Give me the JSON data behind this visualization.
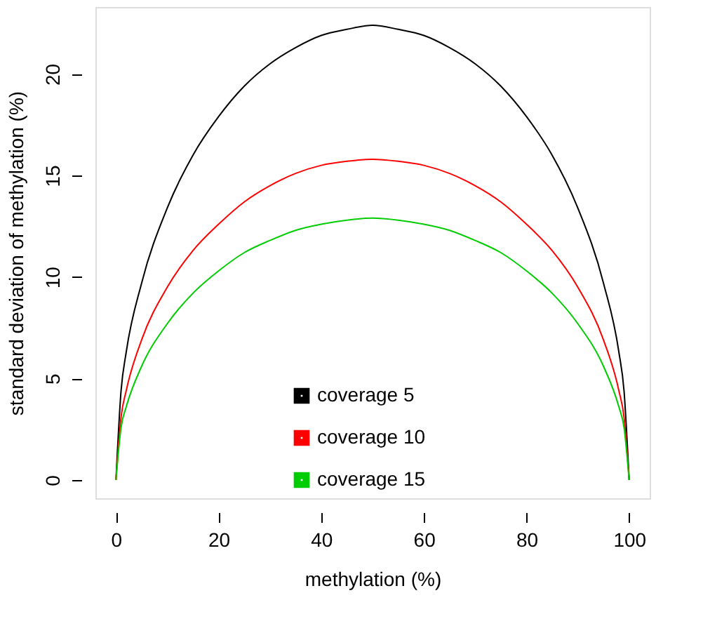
{
  "chart_data": {
    "type": "line",
    "xlabel": "methylation (%)",
    "ylabel": "standard deviation of methylation (%)",
    "x": [
      0,
      1,
      2,
      5,
      10,
      15,
      20,
      25,
      30,
      35,
      40,
      45,
      50,
      55,
      60,
      65,
      70,
      75,
      80,
      85,
      90,
      95,
      98,
      99,
      100
    ],
    "series": [
      {
        "name": "coverage 5",
        "color": "#000000",
        "values": [
          0,
          4.4,
          6.3,
          9.7,
          13.4,
          16.0,
          17.9,
          19.4,
          20.5,
          21.3,
          21.9,
          22.2,
          22.4,
          22.2,
          21.9,
          21.3,
          20.5,
          19.4,
          17.9,
          16.0,
          13.4,
          9.7,
          6.3,
          4.4,
          0
        ]
      },
      {
        "name": "coverage 10",
        "color": "#ff0000",
        "values": [
          0,
          3.1,
          4.4,
          6.9,
          9.5,
          11.3,
          12.6,
          13.7,
          14.5,
          15.1,
          15.5,
          15.7,
          15.8,
          15.7,
          15.5,
          15.1,
          14.5,
          13.7,
          12.6,
          11.3,
          9.5,
          6.9,
          4.4,
          3.1,
          0
        ]
      },
      {
        "name": "coverage 15",
        "color": "#00cd00",
        "values": [
          0,
          2.6,
          3.6,
          5.6,
          7.7,
          9.2,
          10.3,
          11.2,
          11.8,
          12.3,
          12.6,
          12.8,
          12.9,
          12.8,
          12.6,
          12.3,
          11.8,
          11.2,
          10.3,
          9.2,
          7.7,
          5.6,
          3.6,
          2.6,
          0
        ]
      }
    ],
    "xlim": [
      -4,
      104
    ],
    "xticks": [
      0,
      20,
      40,
      60,
      80,
      100
    ],
    "ylim": [
      -0.9,
      23.3
    ],
    "yticks": [
      0,
      5,
      10,
      15,
      20
    ],
    "grid": false,
    "legend": "bottom",
    "marker": "none",
    "line_style": "solid"
  }
}
